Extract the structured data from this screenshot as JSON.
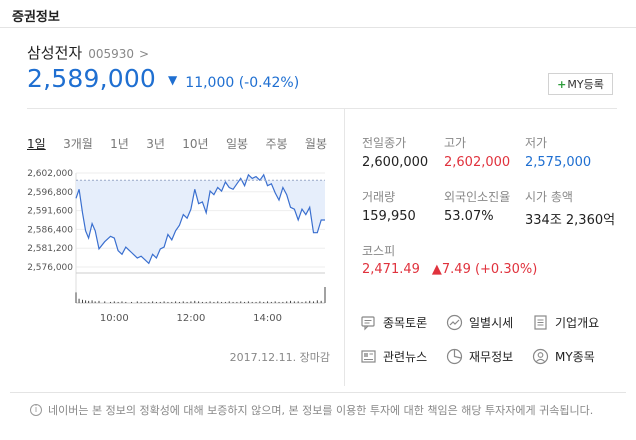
{
  "section_title": "증권정보",
  "stock": {
    "name": "삼성전자",
    "code": "005930",
    "arrow": ">",
    "price": "2,589,000",
    "direction": "▼",
    "change": "11,000 (-0.42%)",
    "my_button_plus": "+",
    "my_button_label": "MY등록"
  },
  "tabs": [
    {
      "label": "1일",
      "active": true
    },
    {
      "label": "3개월",
      "active": false
    },
    {
      "label": "1년",
      "active": false
    },
    {
      "label": "3년",
      "active": false
    },
    {
      "label": "10년",
      "active": false
    },
    {
      "label": "일봉",
      "active": false
    },
    {
      "label": "주봉",
      "active": false
    },
    {
      "label": "월봉",
      "active": false
    }
  ],
  "chart_data": {
    "type": "area",
    "title": "",
    "xlabel": "",
    "ylabel": "",
    "x_ticks": [
      "10:00",
      "12:00",
      "14:00"
    ],
    "y_ticks": [
      "2,602,000",
      "2,596,800",
      "2,591,600",
      "2,586,400",
      "2,581,200",
      "2,576,000"
    ],
    "ylim": [
      2576000,
      2602000
    ],
    "xlim": [
      9.0,
      15.5
    ],
    "baseline": 2600000,
    "series": [
      {
        "x": [
          9.0,
          9.08,
          9.17,
          9.25,
          9.33,
          9.42,
          9.5,
          9.6,
          9.75,
          9.9,
          10.0,
          10.1,
          10.2,
          10.3,
          10.45,
          10.6,
          10.7,
          10.8,
          10.9,
          11.0,
          11.1,
          11.2,
          11.3,
          11.4,
          11.5,
          11.6,
          11.7,
          11.8,
          11.9,
          12.0,
          12.1,
          12.2,
          12.3,
          12.4,
          12.5,
          12.6,
          12.7,
          12.8,
          12.9,
          13.0,
          13.1,
          13.2,
          13.3,
          13.4,
          13.5,
          13.6,
          13.7,
          13.8,
          13.9,
          14.0,
          14.1,
          14.2,
          14.3,
          14.4,
          14.5,
          14.6,
          14.7,
          14.8,
          14.9,
          15.0,
          15.1,
          15.2,
          15.3,
          15.4,
          15.5
        ],
        "y": [
          2595000,
          2597500,
          2591000,
          2586000,
          2584000,
          2588000,
          2586000,
          2581000,
          2583000,
          2584500,
          2584000,
          2580500,
          2579500,
          2581500,
          2580000,
          2578500,
          2579000,
          2578000,
          2577000,
          2579500,
          2578500,
          2581000,
          2581500,
          2585000,
          2583500,
          2586000,
          2587500,
          2590500,
          2589500,
          2592000,
          2597500,
          2593500,
          2594000,
          2591000,
          2597000,
          2596000,
          2598000,
          2597000,
          2599500,
          2598000,
          2597500,
          2599000,
          2600500,
          2598500,
          2601500,
          2600500,
          2601000,
          2600000,
          2601500,
          2598500,
          2599000,
          2596500,
          2594500,
          2598000,
          2596000,
          2592500,
          2592000,
          2589000,
          2592000,
          2590500,
          2592500,
          2585500,
          2585500,
          2589000,
          2589000
        ]
      }
    ],
    "volume": [
      20,
      8,
      6,
      5,
      4,
      5,
      3,
      4,
      3,
      2,
      3,
      2,
      3,
      2,
      2,
      3,
      2,
      2,
      2,
      3,
      2,
      2,
      3,
      2,
      2,
      3,
      2,
      3,
      2,
      3,
      4,
      3,
      2,
      2,
      3,
      2,
      3,
      2,
      2,
      3,
      2,
      2,
      3,
      2,
      3,
      2,
      2,
      3,
      2,
      3,
      2,
      3,
      2,
      2,
      3,
      4,
      3,
      3,
      2,
      3,
      4,
      3,
      5,
      4,
      30
    ],
    "grid": true,
    "legend": "none",
    "line_color": "#3a6fcf",
    "fill_color": "#e6eefb"
  },
  "chart_date": "2017.12.11. 장마감",
  "stats": {
    "prev_close_label": "전일종가",
    "prev_close": "2,600,000",
    "high_label": "고가",
    "high": "2,602,000",
    "low_label": "저가",
    "low": "2,575,000",
    "volume_label": "거래량",
    "volume": "159,950",
    "foreign_label": "외국인소진율",
    "foreign": "53.07%",
    "mcap_label": "시가 총액",
    "mcap": "334조 2,360억"
  },
  "kospi": {
    "label": "코스피",
    "value": "2,471.49",
    "change": "▲7.49 (+0.30%)"
  },
  "links": [
    {
      "label": "종목토론",
      "icon": "chat-icon"
    },
    {
      "label": "일별시세",
      "icon": "trend-icon"
    },
    {
      "label": "기업개요",
      "icon": "document-icon"
    },
    {
      "label": "관련뉴스",
      "icon": "news-icon"
    },
    {
      "label": "재무정보",
      "icon": "pie-icon"
    },
    {
      "label": "MY종목",
      "icon": "user-icon"
    }
  ],
  "disclaimer": "네이버는 본 정보의 정확성에 대해 보증하지 않으며, 본 정보를 이용한 투자에 대한 책임은 해당 투자자에게 귀속됩니다.",
  "info_glyph": "i"
}
